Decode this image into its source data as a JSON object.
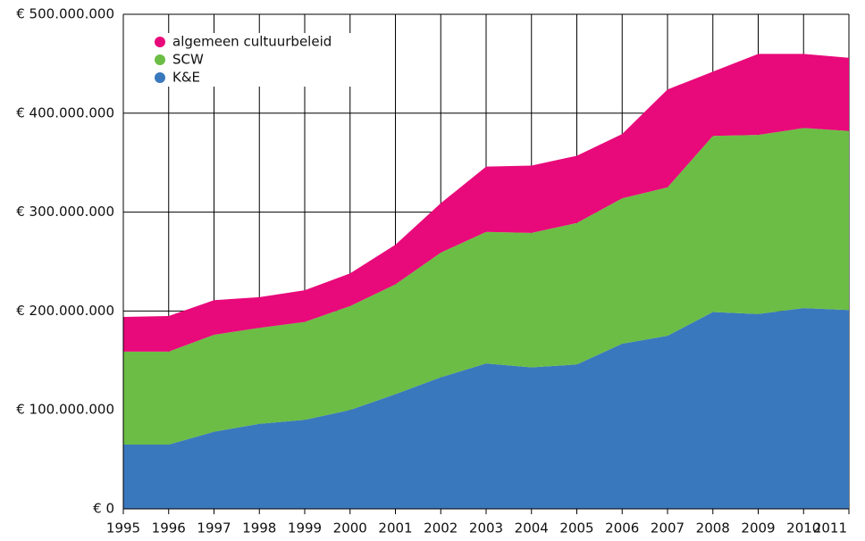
{
  "chart_data": {
    "type": "stacked_area",
    "categories": [
      "1995",
      "1996",
      "1997",
      "1998",
      "1999",
      "2000",
      "2001",
      "2002",
      "2003",
      "2004",
      "2005",
      "2006",
      "2007",
      "2008",
      "2009",
      "2010",
      "2011"
    ],
    "series": [
      {
        "name": "K&E",
        "color": "#3a78bd",
        "values": [
          65000000,
          65000000,
          78000000,
          86000000,
          90000000,
          100000000,
          116000000,
          133000000,
          147000000,
          143000000,
          146000000,
          167000000,
          175000000,
          199000000,
          197000000,
          203000000,
          201000000
        ]
      },
      {
        "name": "SCW",
        "color": "#6cbd45",
        "values": [
          94000000,
          94000000,
          98000000,
          97000000,
          99000000,
          105000000,
          111000000,
          126000000,
          133000000,
          136000000,
          143000000,
          147000000,
          150000000,
          178000000,
          181000000,
          182000000,
          181000000
        ]
      },
      {
        "name": "algemeen cultuurbeleid",
        "color": "#e8097a",
        "values": [
          35000000,
          36000000,
          35000000,
          31000000,
          32000000,
          33000000,
          40000000,
          50000000,
          66000000,
          68000000,
          68000000,
          65000000,
          99000000,
          65000000,
          82000000,
          75000000,
          74000000
        ]
      }
    ],
    "ylim": [
      0,
      500000000
    ],
    "yticks": [
      {
        "value": 0,
        "label": "€ 0"
      },
      {
        "value": 100000000,
        "label": "€ 100.000.000"
      },
      {
        "value": 200000000,
        "label": "€ 200.000.000"
      },
      {
        "value": 300000000,
        "label": "€ 300.000.000"
      },
      {
        "value": 400000000,
        "label": "€ 400.000.000"
      },
      {
        "value": 500000000,
        "label": "€ 500.000.000"
      }
    ],
    "grid": true,
    "legend": "upper left"
  }
}
